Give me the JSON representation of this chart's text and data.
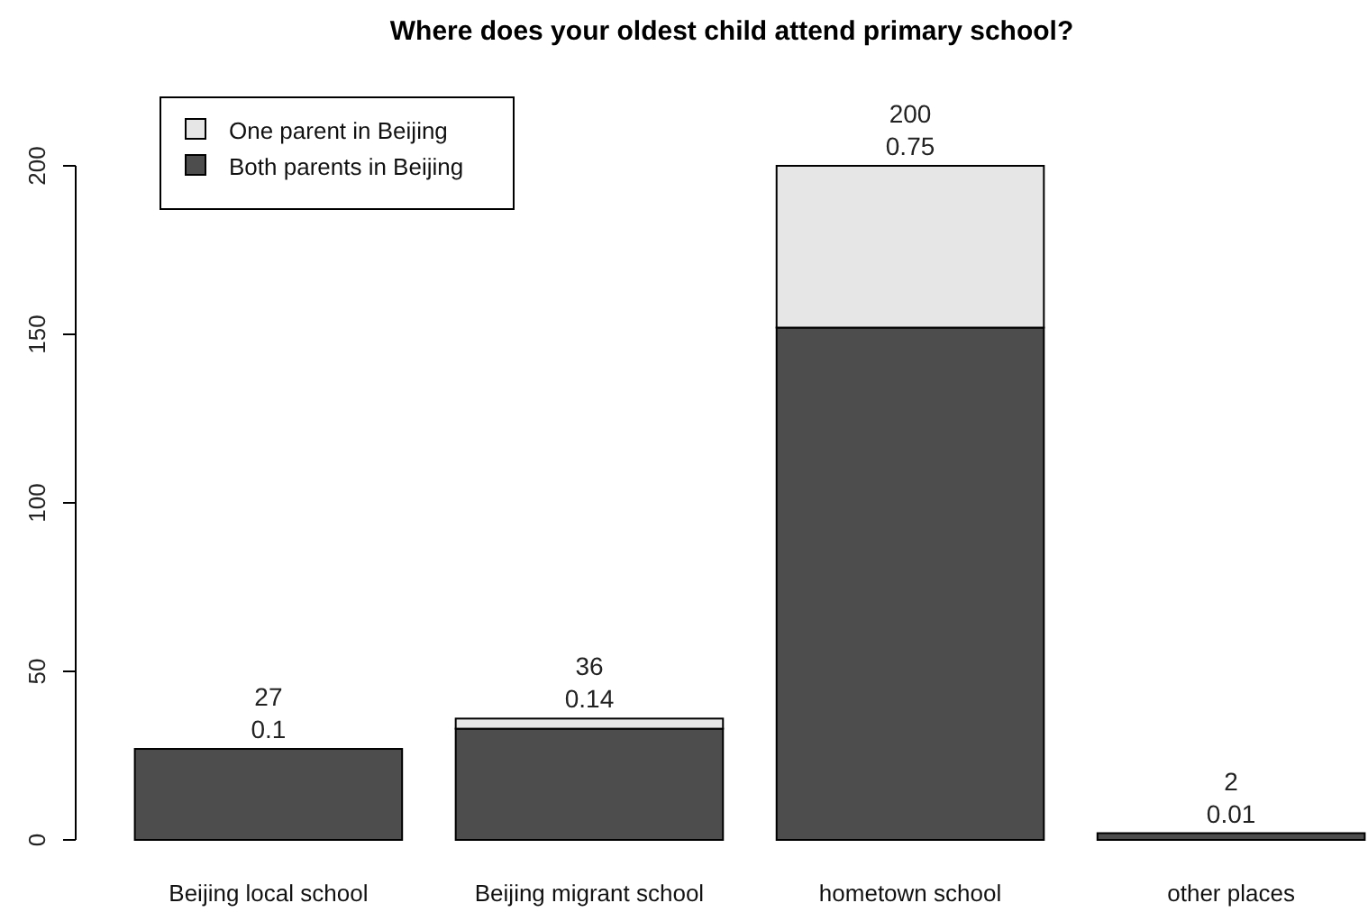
{
  "chart_data": {
    "type": "bar",
    "title": "Where does your oldest child attend primary school?",
    "categories": [
      "Beijing local school",
      "Beijing migrant school",
      "hometown school",
      "other places"
    ],
    "stacked": true,
    "series": [
      {
        "name": "Both parents in Beijing",
        "color": "#4d4d4d",
        "values": [
          27,
          33,
          152,
          2
        ]
      },
      {
        "name": "One parent in Beijing",
        "color": "#e6e6e6",
        "values": [
          0,
          3,
          48,
          0
        ]
      }
    ],
    "ylim": [
      0,
      200
    ],
    "yticks": [
      0,
      50,
      100,
      150,
      200
    ],
    "totals": [
      "27\n0.1",
      "36\n0.14",
      "200\n0.75",
      "2\n0.01"
    ],
    "legend": "top left",
    "grid": false
  }
}
